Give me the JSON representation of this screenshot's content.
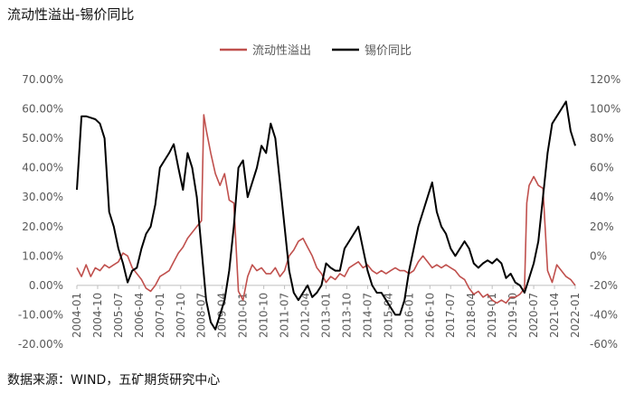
{
  "title": "流动性溢出-锡价同比",
  "source": "数据来源：WIND，五矿期货研究中心",
  "chart_data": {
    "type": "line",
    "title": "流动性溢出-锡价同比",
    "legend_position": "top",
    "grid": false,
    "left_axis": {
      "min": -20,
      "max": 70,
      "step": 10,
      "tick_labels": [
        "-20.00%",
        "-10.00%",
        "0.00%",
        "10.00%",
        "20.00%",
        "30.00%",
        "40.00%",
        "50.00%",
        "60.00%",
        "70.00%"
      ]
    },
    "right_axis": {
      "min": -60,
      "max": 120,
      "step": 20,
      "tick_labels": [
        "-60%",
        "-40%",
        "-20%",
        "0%",
        "20%",
        "40%",
        "60%",
        "80%",
        "100%",
        "120%"
      ]
    },
    "x_tick_labels": [
      "2004-01",
      "2004-10",
      "2005-07",
      "2006-04",
      "2007-01",
      "2007-10",
      "2008-07",
      "2009-04",
      "2010-01",
      "2010-10",
      "2011-07",
      "2012-04",
      "2013-01",
      "2013-10",
      "2014-07",
      "2015-04",
      "2016-01",
      "2016-10",
      "2017-07",
      "2018-04",
      "2019-01",
      "2019-10",
      "2020-07",
      "2021-04",
      "2022-01"
    ],
    "series": [
      {
        "name": "流动性溢出",
        "axis": "left",
        "color": "#c0504d",
        "points": [
          [
            "2004-01",
            6
          ],
          [
            "2004-03",
            3
          ],
          [
            "2004-05",
            7
          ],
          [
            "2004-07",
            3
          ],
          [
            "2004-09",
            6
          ],
          [
            "2004-11",
            5
          ],
          [
            "2005-01",
            7
          ],
          [
            "2005-03",
            6
          ],
          [
            "2005-05",
            7
          ],
          [
            "2005-07",
            8
          ],
          [
            "2005-09",
            11
          ],
          [
            "2005-11",
            10
          ],
          [
            "2006-01",
            6
          ],
          [
            "2006-03",
            4
          ],
          [
            "2006-05",
            2
          ],
          [
            "2006-07",
            -1
          ],
          [
            "2006-09",
            -2
          ],
          [
            "2006-11",
            0
          ],
          [
            "2007-01",
            3
          ],
          [
            "2007-03",
            4
          ],
          [
            "2007-05",
            5
          ],
          [
            "2007-07",
            8
          ],
          [
            "2007-09",
            11
          ],
          [
            "2007-11",
            13
          ],
          [
            "2008-01",
            16
          ],
          [
            "2008-03",
            18
          ],
          [
            "2008-05",
            20
          ],
          [
            "2008-07",
            22
          ],
          [
            "2008-08",
            58
          ],
          [
            "2008-09",
            53
          ],
          [
            "2008-11",
            45
          ],
          [
            "2009-01",
            38
          ],
          [
            "2009-03",
            34
          ],
          [
            "2009-05",
            38
          ],
          [
            "2009-07",
            29
          ],
          [
            "2009-09",
            28
          ],
          [
            "2009-11",
            -2
          ],
          [
            "2010-01",
            -5
          ],
          [
            "2010-03",
            3
          ],
          [
            "2010-05",
            7
          ],
          [
            "2010-07",
            5
          ],
          [
            "2010-09",
            6
          ],
          [
            "2010-11",
            4
          ],
          [
            "2011-01",
            4
          ],
          [
            "2011-03",
            6
          ],
          [
            "2011-05",
            3
          ],
          [
            "2011-07",
            5
          ],
          [
            "2011-09",
            10
          ],
          [
            "2011-11",
            12
          ],
          [
            "2012-01",
            15
          ],
          [
            "2012-03",
            16
          ],
          [
            "2012-05",
            13
          ],
          [
            "2012-07",
            10
          ],
          [
            "2012-09",
            6
          ],
          [
            "2012-11",
            4
          ],
          [
            "2013-01",
            1
          ],
          [
            "2013-03",
            3
          ],
          [
            "2013-05",
            2
          ],
          [
            "2013-07",
            4
          ],
          [
            "2013-09",
            3
          ],
          [
            "2013-11",
            6
          ],
          [
            "2014-01",
            7
          ],
          [
            "2014-03",
            8
          ],
          [
            "2014-05",
            6
          ],
          [
            "2014-07",
            7
          ],
          [
            "2014-09",
            5
          ],
          [
            "2014-11",
            4
          ],
          [
            "2015-01",
            5
          ],
          [
            "2015-03",
            4
          ],
          [
            "2015-05",
            5
          ],
          [
            "2015-07",
            6
          ],
          [
            "2015-09",
            5
          ],
          [
            "2015-11",
            5
          ],
          [
            "2016-01",
            4
          ],
          [
            "2016-03",
            5
          ],
          [
            "2016-05",
            8
          ],
          [
            "2016-07",
            10
          ],
          [
            "2016-09",
            8
          ],
          [
            "2016-11",
            6
          ],
          [
            "2017-01",
            7
          ],
          [
            "2017-03",
            6
          ],
          [
            "2017-05",
            7
          ],
          [
            "2017-07",
            6
          ],
          [
            "2017-09",
            5
          ],
          [
            "2017-11",
            3
          ],
          [
            "2018-01",
            2
          ],
          [
            "2018-03",
            -1
          ],
          [
            "2018-05",
            -3
          ],
          [
            "2018-07",
            -2
          ],
          [
            "2018-09",
            -4
          ],
          [
            "2018-11",
            -3
          ],
          [
            "2019-01",
            -5
          ],
          [
            "2019-03",
            -6
          ],
          [
            "2019-05",
            -5
          ],
          [
            "2019-07",
            -6
          ],
          [
            "2019-09",
            -4
          ],
          [
            "2019-11",
            -4
          ],
          [
            "2020-01",
            -3
          ],
          [
            "2020-03",
            -1
          ],
          [
            "2020-04",
            28
          ],
          [
            "2020-05",
            34
          ],
          [
            "2020-07",
            37
          ],
          [
            "2020-09",
            34
          ],
          [
            "2020-11",
            33
          ],
          [
            "2021-01",
            5
          ],
          [
            "2021-03",
            1
          ],
          [
            "2021-05",
            7
          ],
          [
            "2021-07",
            5
          ],
          [
            "2021-09",
            3
          ],
          [
            "2021-11",
            2
          ],
          [
            "2022-01",
            0
          ]
        ]
      },
      {
        "name": "锡价同比",
        "axis": "right",
        "color": "#000000",
        "points": [
          [
            "2004-01",
            45
          ],
          [
            "2004-03",
            95
          ],
          [
            "2004-05",
            95
          ],
          [
            "2004-07",
            94
          ],
          [
            "2004-09",
            93
          ],
          [
            "2004-11",
            90
          ],
          [
            "2005-01",
            80
          ],
          [
            "2005-03",
            30
          ],
          [
            "2005-05",
            20
          ],
          [
            "2005-07",
            5
          ],
          [
            "2005-09",
            -5
          ],
          [
            "2005-11",
            -18
          ],
          [
            "2006-01",
            -10
          ],
          [
            "2006-03",
            -8
          ],
          [
            "2006-05",
            5
          ],
          [
            "2006-07",
            15
          ],
          [
            "2006-09",
            20
          ],
          [
            "2006-11",
            35
          ],
          [
            "2007-01",
            60
          ],
          [
            "2007-03",
            65
          ],
          [
            "2007-05",
            70
          ],
          [
            "2007-07",
            76
          ],
          [
            "2007-09",
            60
          ],
          [
            "2007-11",
            45
          ],
          [
            "2008-01",
            70
          ],
          [
            "2008-03",
            60
          ],
          [
            "2008-05",
            40
          ],
          [
            "2008-07",
            5
          ],
          [
            "2008-09",
            -30
          ],
          [
            "2008-11",
            -45
          ],
          [
            "2009-01",
            -50
          ],
          [
            "2009-03",
            -40
          ],
          [
            "2009-05",
            -30
          ],
          [
            "2009-07",
            -10
          ],
          [
            "2009-09",
            20
          ],
          [
            "2009-11",
            60
          ],
          [
            "2010-01",
            65
          ],
          [
            "2010-03",
            40
          ],
          [
            "2010-05",
            50
          ],
          [
            "2010-07",
            60
          ],
          [
            "2010-09",
            75
          ],
          [
            "2010-11",
            70
          ],
          [
            "2011-01",
            90
          ],
          [
            "2011-03",
            80
          ],
          [
            "2011-05",
            50
          ],
          [
            "2011-07",
            20
          ],
          [
            "2011-09",
            -10
          ],
          [
            "2011-11",
            -25
          ],
          [
            "2012-01",
            -30
          ],
          [
            "2012-03",
            -25
          ],
          [
            "2012-05",
            -20
          ],
          [
            "2012-07",
            -28
          ],
          [
            "2012-09",
            -25
          ],
          [
            "2012-11",
            -20
          ],
          [
            "2013-01",
            -5
          ],
          [
            "2013-03",
            -8
          ],
          [
            "2013-05",
            -10
          ],
          [
            "2013-07",
            -10
          ],
          [
            "2013-09",
            5
          ],
          [
            "2013-11",
            10
          ],
          [
            "2014-01",
            15
          ],
          [
            "2014-03",
            20
          ],
          [
            "2014-05",
            5
          ],
          [
            "2014-07",
            -10
          ],
          [
            "2014-09",
            -20
          ],
          [
            "2014-11",
            -25
          ],
          [
            "2015-01",
            -25
          ],
          [
            "2015-03",
            -30
          ],
          [
            "2015-05",
            -35
          ],
          [
            "2015-07",
            -40
          ],
          [
            "2015-09",
            -40
          ],
          [
            "2015-11",
            -30
          ],
          [
            "2016-01",
            -10
          ],
          [
            "2016-03",
            5
          ],
          [
            "2016-05",
            20
          ],
          [
            "2016-07",
            30
          ],
          [
            "2016-09",
            40
          ],
          [
            "2016-11",
            50
          ],
          [
            "2017-01",
            30
          ],
          [
            "2017-03",
            20
          ],
          [
            "2017-05",
            15
          ],
          [
            "2017-07",
            5
          ],
          [
            "2017-09",
            0
          ],
          [
            "2017-11",
            5
          ],
          [
            "2018-01",
            10
          ],
          [
            "2018-03",
            5
          ],
          [
            "2018-05",
            -5
          ],
          [
            "2018-07",
            -8
          ],
          [
            "2018-09",
            -5
          ],
          [
            "2018-11",
            -3
          ],
          [
            "2019-01",
            -5
          ],
          [
            "2019-03",
            -2
          ],
          [
            "2019-05",
            -5
          ],
          [
            "2019-07",
            -15
          ],
          [
            "2019-09",
            -12
          ],
          [
            "2019-11",
            -18
          ],
          [
            "2020-01",
            -20
          ],
          [
            "2020-03",
            -25
          ],
          [
            "2020-05",
            -15
          ],
          [
            "2020-07",
            -5
          ],
          [
            "2020-09",
            10
          ],
          [
            "2020-11",
            40
          ],
          [
            "2021-01",
            70
          ],
          [
            "2021-03",
            90
          ],
          [
            "2021-05",
            95
          ],
          [
            "2021-07",
            100
          ],
          [
            "2021-09",
            105
          ],
          [
            "2021-11",
            85
          ],
          [
            "2022-01",
            75
          ]
        ]
      }
    ]
  }
}
